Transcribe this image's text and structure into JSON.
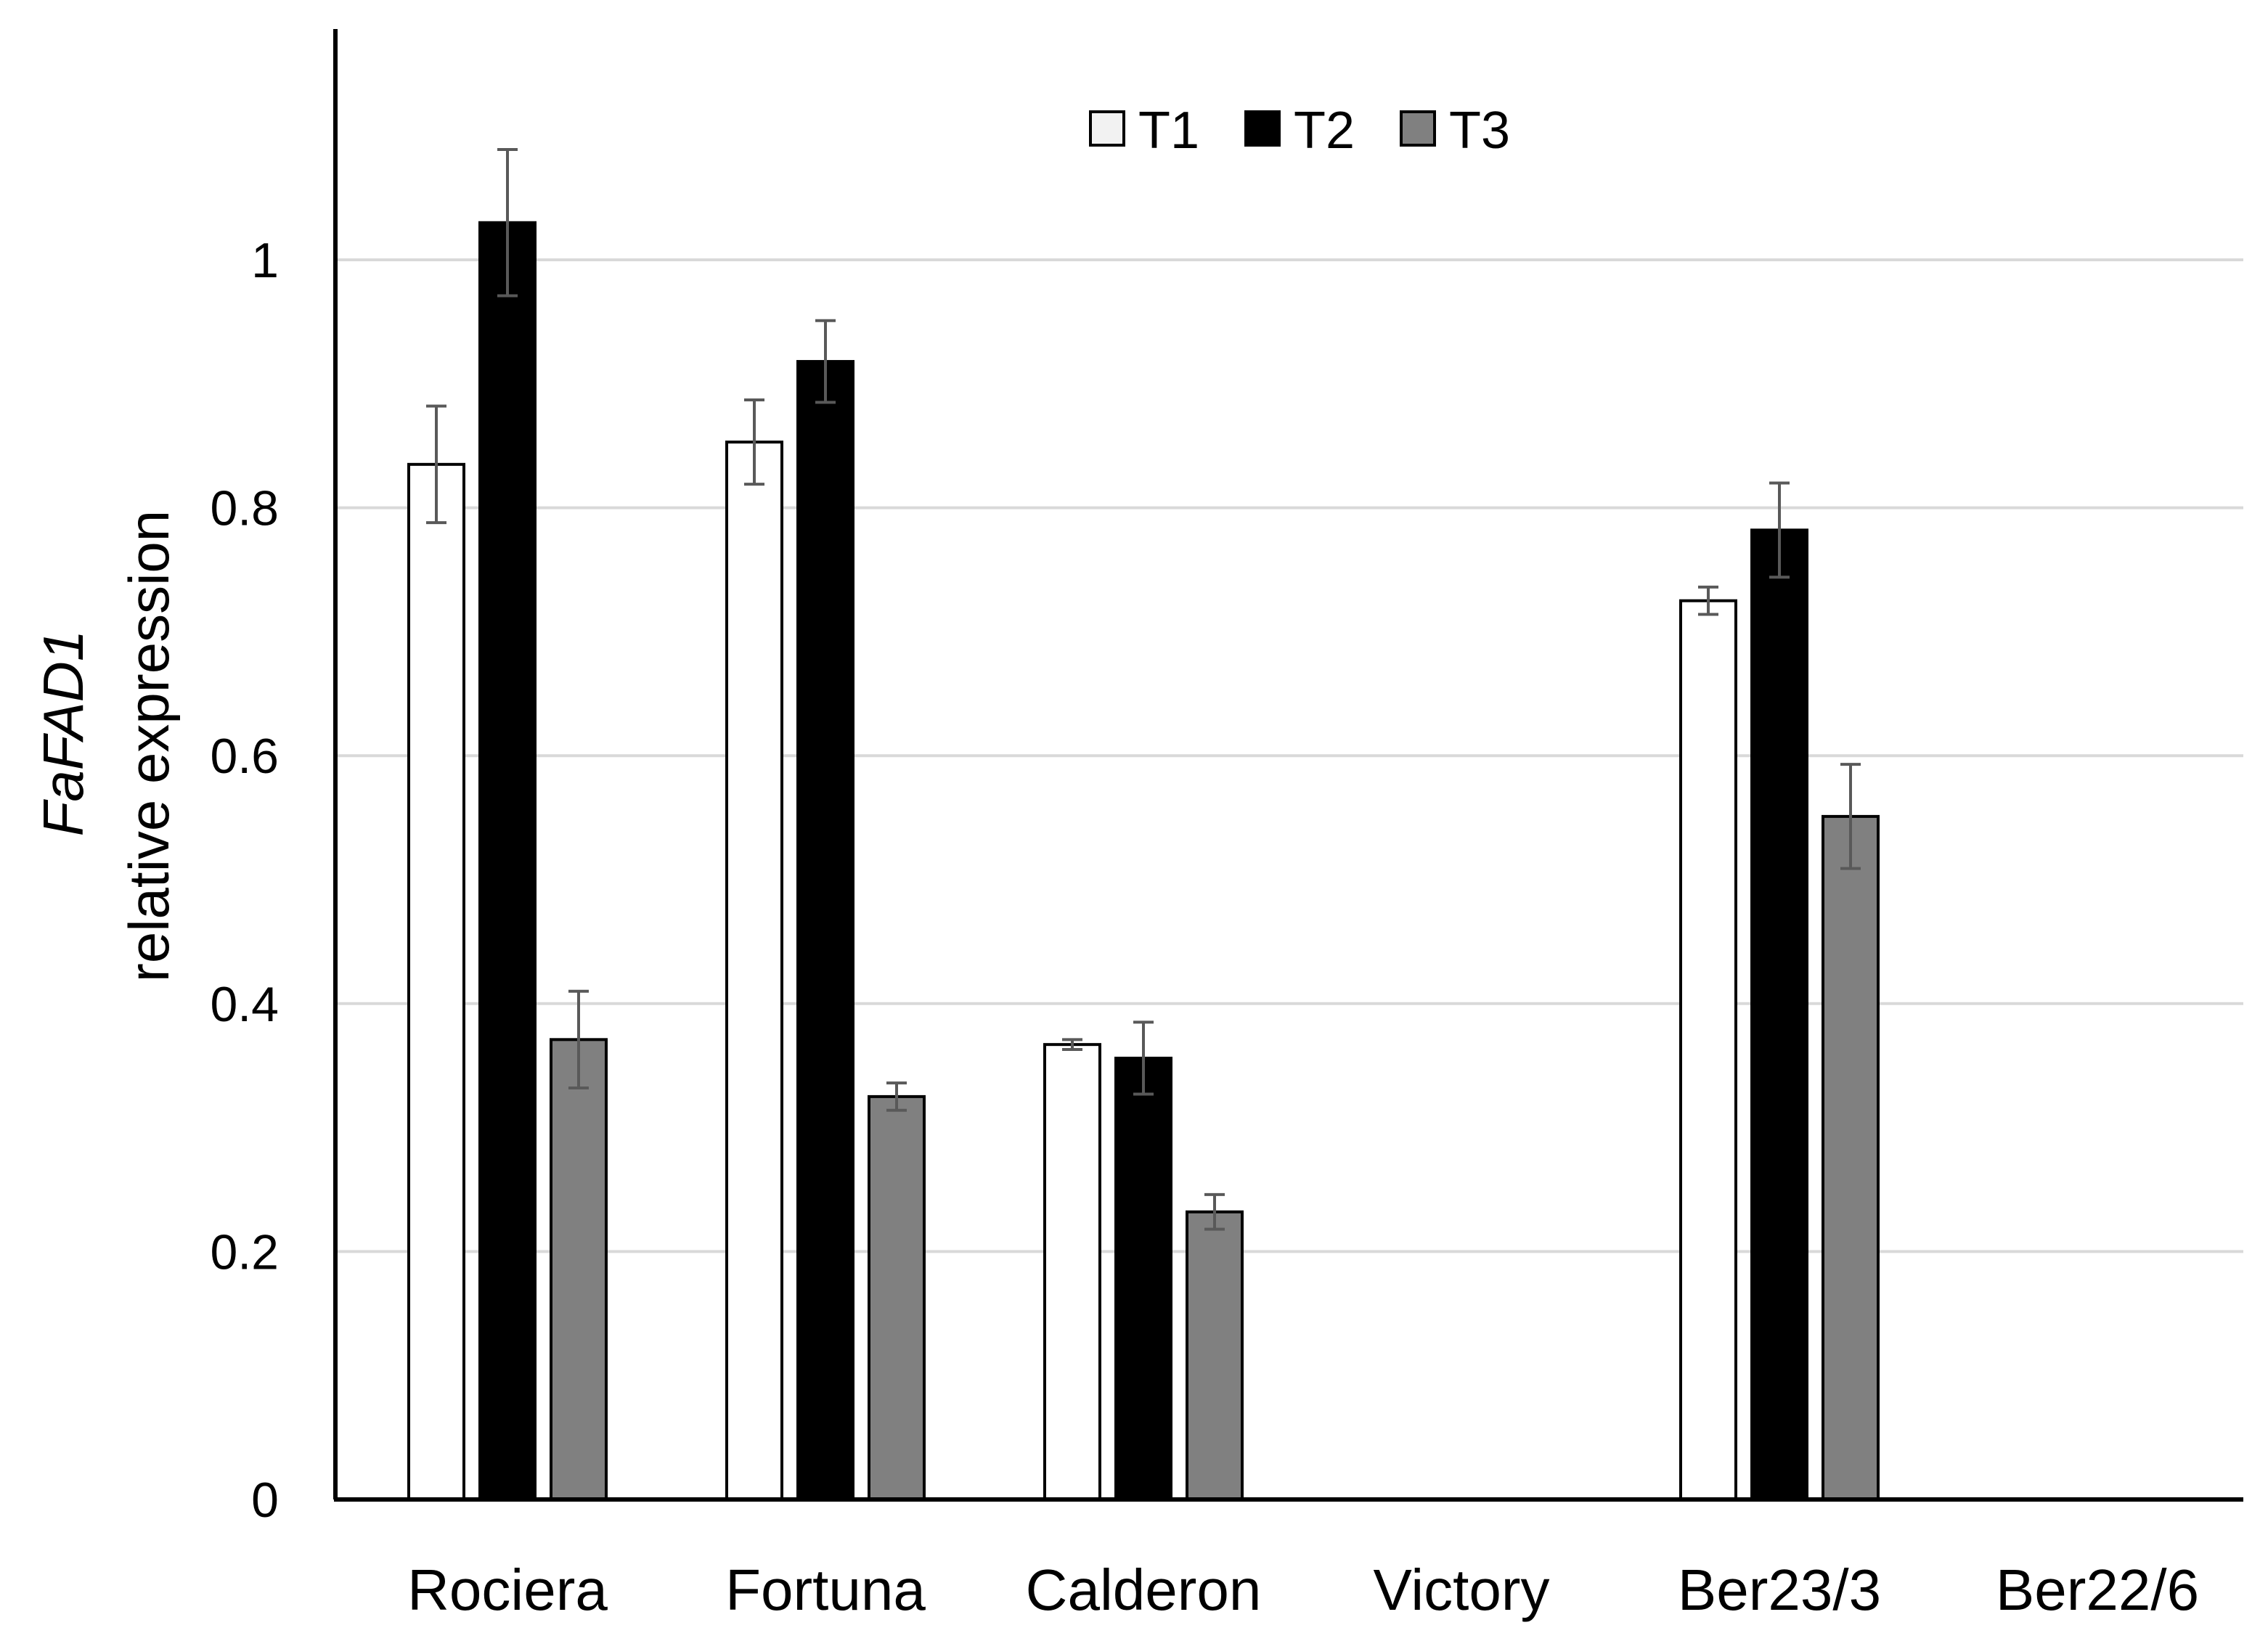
{
  "chart_data": {
    "type": "bar",
    "title": "",
    "ylabel_gene": "FaFAD1",
    "ylabel_text": "relative expression",
    "xlabel": "",
    "ylim": [
      0,
      1.2
    ],
    "yticks": [
      0,
      0.2,
      0.4,
      0.6,
      0.8,
      1
    ],
    "ytick_labels": [
      "0",
      "0.2",
      "0.4",
      "0.6",
      "0.8",
      "1"
    ],
    "grid": true,
    "legend_position": "top-center",
    "categories": [
      "Rociera",
      "Fortuna",
      "Calderon",
      "Victory",
      "Ber23/3",
      "Ber22/6"
    ],
    "series": [
      {
        "name": "T1",
        "color": "#ffffff",
        "values": [
          0.835,
          0.853,
          0.367,
          0,
          0.725,
          0
        ],
        "errors": [
          0.047,
          0.034,
          0.004,
          0,
          0.011,
          0
        ]
      },
      {
        "name": "T2",
        "color": "#000000",
        "values": [
          1.03,
          0.918,
          0.356,
          0,
          0.782,
          0
        ],
        "errors": [
          0.059,
          0.033,
          0.029,
          0,
          0.038,
          0
        ]
      },
      {
        "name": "T3",
        "color": "#808080",
        "values": [
          0.371,
          0.325,
          0.232,
          0,
          0.551,
          0
        ],
        "errors": [
          0.039,
          0.011,
          0.014,
          0,
          0.042,
          0
        ]
      }
    ]
  }
}
